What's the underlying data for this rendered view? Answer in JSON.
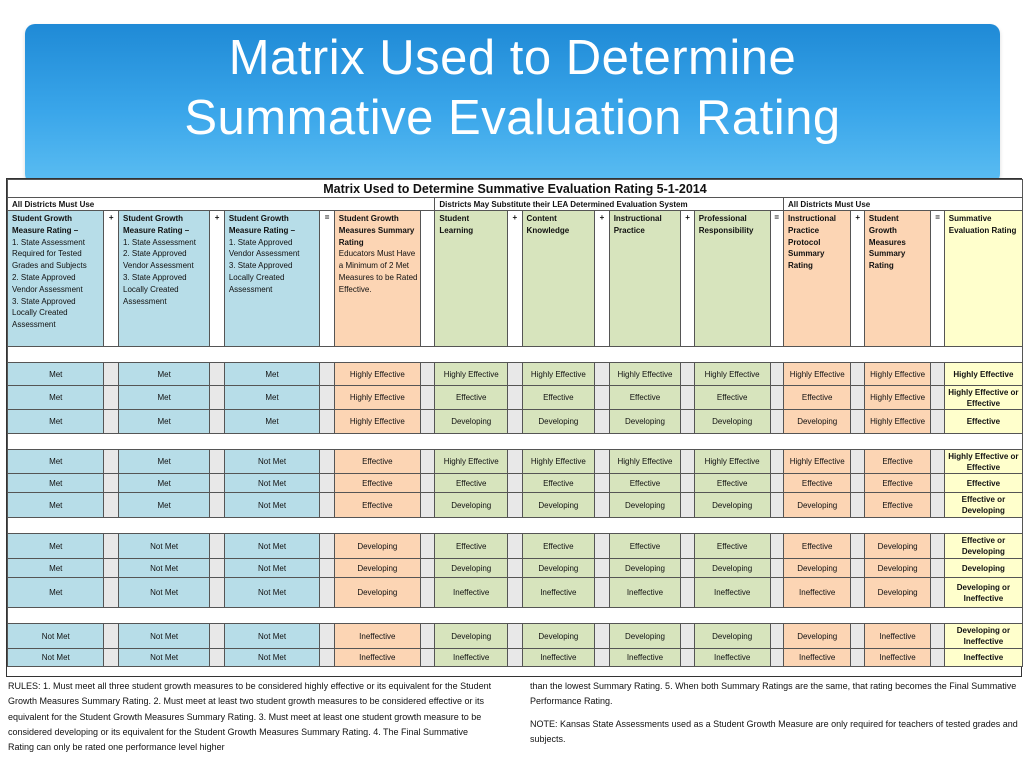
{
  "slide": {
    "title": "Matrix Used to Determine\nSummative Evaluation Rating"
  },
  "matrix": {
    "title": "Matrix Used to Determine Summative Evaluation Rating 5-1-2014",
    "groups": {
      "left": "All Districts Must Use",
      "middle": "Districts May Substitute their LEA Determined Evaluation System",
      "right": "All Districts Must Use"
    },
    "headers": [
      {
        "title": "Student Growth Measure  Rating –",
        "body": "1. State Assessment Required for Tested Grades and Subjects\n2. State Approved Vendor Assessment\n3. State Approved Locally Created Assessment"
      },
      {
        "title": "Student Growth Measure  Rating –",
        "body": "1. State Assessment\n2. State Approved Vendor Assessment\n3. State Approved Locally Created Assessment"
      },
      {
        "title": "Student Growth Measure  Rating  –",
        "body": "1. State Approved Vendor Assessment\n3. State Approved Locally Created Assessment"
      },
      {
        "title": "Student Growth Measures Summary Rating",
        "body": "Educators Must Have a Minimum of 2 Met Measures to be Rated Effective."
      },
      {
        "title": "Student Learning",
        "body": ""
      },
      {
        "title": "Content Knowledge",
        "body": ""
      },
      {
        "title": "Instructional Practice",
        "body": ""
      },
      {
        "title": "Professional Responsibility",
        "body": ""
      },
      {
        "title": "Instructional Practice Protocol Summary Rating",
        "body": ""
      },
      {
        "title": "Student Growth Measures Summary Rating",
        "body": ""
      },
      {
        "title": "Summative Evaluation Rating",
        "body": ""
      }
    ],
    "operators": [
      "+",
      "+",
      "=",
      "+",
      "+",
      "+",
      "=",
      "+",
      "="
    ],
    "rows": [
      [
        "Met",
        "Met",
        "Met",
        "Highly Effective",
        "Highly Effective",
        "Highly Effective",
        "Highly Effective",
        "Highly Effective",
        "Highly Effective",
        "Highly Effective",
        "Highly Effective"
      ],
      [
        "Met",
        "Met",
        "Met",
        "Highly Effective",
        "Effective",
        "Effective",
        "Effective",
        "Effective",
        "Effective",
        "Highly Effective",
        "Highly Effective or Effective"
      ],
      [
        "Met",
        "Met",
        "Met",
        "Highly Effective",
        "Developing",
        "Developing",
        "Developing",
        "Developing",
        "Developing",
        "Highly Effective",
        "Effective"
      ],
      [
        "Met",
        "Met",
        "Not Met",
        "Effective",
        "Highly Effective",
        "Highly Effective",
        "Highly Effective",
        "Highly Effective",
        "Highly Effective",
        "Effective",
        "Highly Effective or Effective"
      ],
      [
        "Met",
        "Met",
        "Not Met",
        "Effective",
        "Effective",
        "Effective",
        "Effective",
        "Effective",
        "Effective",
        "Effective",
        "Effective"
      ],
      [
        "Met",
        "Met",
        "Not Met",
        "Effective",
        "Developing",
        "Developing",
        "Developing",
        "Developing",
        "Developing",
        "Effective",
        "Effective or Developing"
      ],
      [
        "Met",
        "Not Met",
        "Not Met",
        "Developing",
        "Effective",
        "Effective",
        "Effective",
        "Effective",
        "Effective",
        "Developing",
        "Effective or Developing"
      ],
      [
        "Met",
        "Not Met",
        "Not Met",
        "Developing",
        "Developing",
        "Developing",
        "Developing",
        "Developing",
        "Developing",
        "Developing",
        "Developing"
      ],
      [
        "Met",
        "Not Met",
        "Not Met",
        "Developing",
        "Ineffective",
        "Ineffective",
        "Ineffective",
        "Ineffective",
        "Ineffective",
        "Developing",
        "Developing or Ineffective"
      ],
      [
        "Not Met",
        "Not Met",
        "Not Met",
        "Ineffective",
        "Developing",
        "Developing",
        "Developing",
        "Developing",
        "Developing",
        "Ineffective",
        "Developing or Ineffective"
      ],
      [
        "Not Met",
        "Not Met",
        "Not Met",
        "Ineffective",
        "Ineffective",
        "Ineffective",
        "Ineffective",
        "Ineffective",
        "Ineffective",
        "Ineffective",
        "Ineffective"
      ]
    ]
  },
  "rules": {
    "left": "RULES: 1. Must meet all three student growth measures to be considered highly effective or its equivalent for the Student Growth Measures Summary Rating. 2. Must meet at least two student growth measures to be considered effective or its equivalent for the Student Growth Measures Summary Rating.  3. Must meet at least one student growth measure to be considered developing or its equivalent for the Student Growth Measures Summary Rating. 4. The Final Summative Rating can only be rated one performance level higher",
    "right": "than the lowest Summary Rating. 5. When both Summary Ratings are the same, that rating becomes the Final Summative Performance Rating.",
    "note": "NOTE: Kansas State Assessments used as a Student Growth Measure are only required for teachers of tested grades and subjects."
  },
  "colors": {
    "header_gradient_top": "#1f8ad6",
    "header_gradient_bottom": "#5bbdf2",
    "blue_cell": "#b7dde8",
    "orange_cell": "#fcd5b4",
    "green_cell": "#d7e4bd",
    "yellow_cell": "#ffffcc"
  }
}
